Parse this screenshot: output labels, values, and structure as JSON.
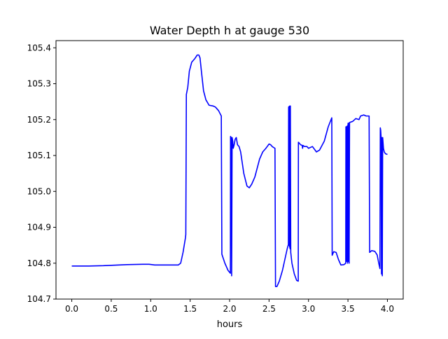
{
  "chart_data": {
    "type": "line",
    "title": "Water Depth h at gauge 530",
    "xlabel": "hours",
    "ylabel": "",
    "xlim": [
      -0.2,
      4.2
    ],
    "ylim": [
      104.7,
      105.42
    ],
    "xticks": [
      0.0,
      0.5,
      1.0,
      1.5,
      2.0,
      2.5,
      3.0,
      3.5,
      4.0
    ],
    "xtick_labels": [
      "0.0",
      "0.5",
      "1.0",
      "1.5",
      "2.0",
      "2.5",
      "3.0",
      "3.5",
      "4.0"
    ],
    "yticks": [
      104.7,
      104.8,
      104.9,
      105.0,
      105.1,
      105.2,
      105.3,
      105.4
    ],
    "ytick_labels": [
      "104.7",
      "104.8",
      "104.9",
      "105.0",
      "105.1",
      "105.2",
      "105.3",
      "105.4"
    ],
    "grid": false,
    "series": [
      {
        "color": "#0000ff",
        "x": [
          0.0,
          0.2,
          0.4,
          0.6,
          0.7,
          0.9,
          0.98,
          1.05,
          1.2,
          1.35,
          1.38,
          1.41,
          1.44,
          1.445,
          1.452,
          1.47,
          1.49,
          1.52,
          1.56,
          1.59,
          1.61,
          1.625,
          1.645,
          1.67,
          1.7,
          1.74,
          1.79,
          1.82,
          1.86,
          1.895,
          1.902,
          1.94,
          1.98,
          2.01,
          2.012,
          2.02,
          2.026,
          2.032,
          2.04,
          2.046,
          2.058,
          2.07,
          2.085,
          2.1,
          2.12,
          2.14,
          2.18,
          2.22,
          2.25,
          2.28,
          2.32,
          2.38,
          2.42,
          2.46,
          2.5,
          2.52,
          2.54,
          2.56,
          2.575,
          2.582,
          2.6,
          2.63,
          2.67,
          2.7,
          2.73,
          2.745,
          2.748,
          2.752,
          2.756,
          2.76,
          2.763,
          2.766,
          2.77,
          2.775,
          2.79,
          2.82,
          2.85,
          2.87,
          2.872,
          2.9,
          2.92,
          2.925,
          2.93,
          2.95,
          2.98,
          3.0,
          3.05,
          3.1,
          3.14,
          3.2,
          3.25,
          3.295,
          3.3,
          3.32,
          3.35,
          3.38,
          3.41,
          3.45,
          3.472,
          3.474,
          3.48,
          3.485,
          3.49,
          3.495,
          3.5,
          3.502,
          3.506,
          3.51,
          3.515,
          3.52,
          3.56,
          3.6,
          3.64,
          3.66,
          3.7,
          3.73,
          3.768,
          3.775,
          3.8,
          3.84,
          3.87,
          3.89,
          3.905,
          3.91,
          3.915,
          3.92,
          3.925,
          3.93,
          3.935,
          3.94,
          3.95,
          3.96,
          3.975,
          4.0
        ],
        "y": [
          104.792,
          104.792,
          104.793,
          104.795,
          104.796,
          104.797,
          104.797,
          104.795,
          104.795,
          104.795,
          104.8,
          104.83,
          104.87,
          104.88,
          105.27,
          105.29,
          105.335,
          105.36,
          105.37,
          105.38,
          105.38,
          105.372,
          105.33,
          105.28,
          105.255,
          105.24,
          105.238,
          105.235,
          105.225,
          105.21,
          104.825,
          104.8,
          104.78,
          104.772,
          105.153,
          105.15,
          104.765,
          105.15,
          105.14,
          105.12,
          105.13,
          105.145,
          105.15,
          105.13,
          105.125,
          105.11,
          105.05,
          105.015,
          105.01,
          105.02,
          105.04,
          105.09,
          105.11,
          105.12,
          105.132,
          105.13,
          105.125,
          105.122,
          105.12,
          104.735,
          104.735,
          104.75,
          104.78,
          104.81,
          104.84,
          104.852,
          105.235,
          104.85,
          105.237,
          104.845,
          105.238,
          104.84,
          105.238,
          104.83,
          104.8,
          104.77,
          104.752,
          104.75,
          105.137,
          105.13,
          105.128,
          105.12,
          105.128,
          105.125,
          105.125,
          105.12,
          105.125,
          105.11,
          105.115,
          105.14,
          105.18,
          105.205,
          104.822,
          104.832,
          104.83,
          104.81,
          104.795,
          104.796,
          104.8,
          105.18,
          105.18,
          104.805,
          105.182,
          104.8,
          105.185,
          105.19,
          104.805,
          105.19,
          104.8,
          105.192,
          105.195,
          105.203,
          105.2,
          105.21,
          105.213,
          105.21,
          105.21,
          104.83,
          104.835,
          104.833,
          104.823,
          104.8,
          104.785,
          105.177,
          105.17,
          105.15,
          104.77,
          105.15,
          104.765,
          105.15,
          105.12,
          105.11,
          105.105,
          105.103
        ]
      }
    ]
  }
}
